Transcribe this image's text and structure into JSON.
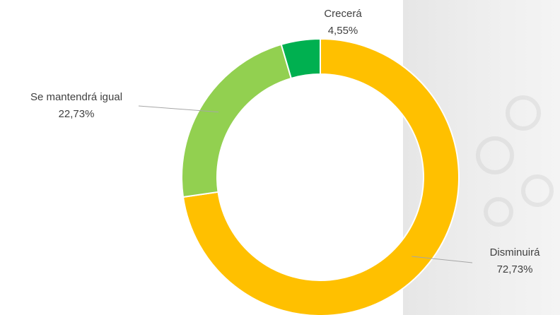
{
  "chart_data": {
    "type": "donut",
    "categories": [
      "Disminuirá",
      "Se mantendrá igual",
      "Crecerá"
    ],
    "values": [
      72.73,
      22.73,
      4.55
    ],
    "value_labels": [
      "72,73%",
      "22,73%",
      "4,55%"
    ],
    "colors": [
      "#FFC000",
      "#92D050",
      "#00B050"
    ]
  }
}
